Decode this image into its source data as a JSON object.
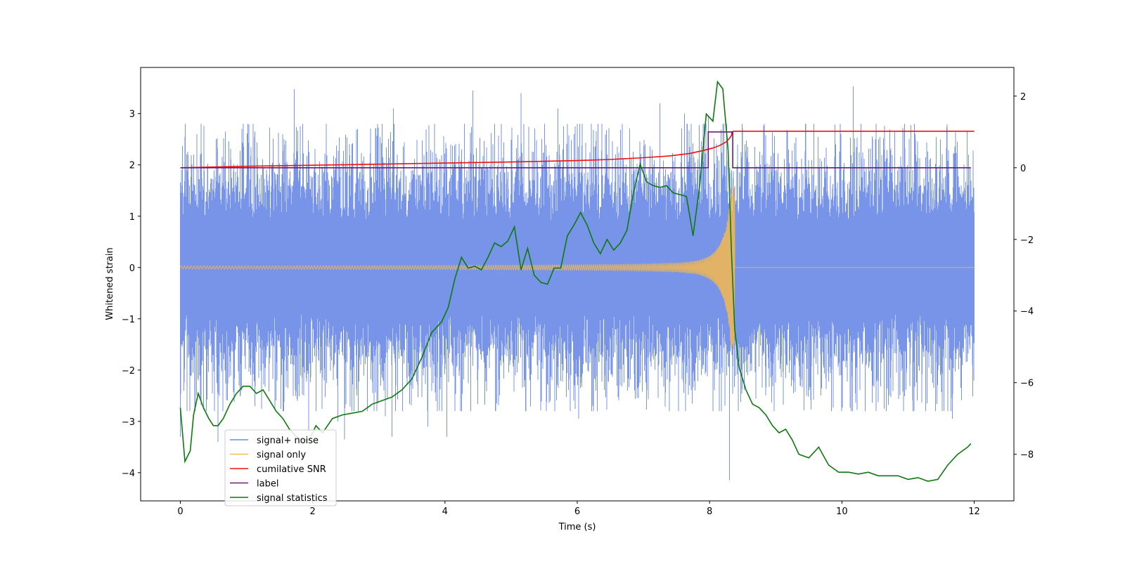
{
  "chart_data": {
    "type": "line",
    "xlabel": "Time (s)",
    "ylabel": "Whitened strain",
    "y2label": "",
    "xlim": [
      -0.6,
      12.6
    ],
    "ylim": [
      -4.55,
      3.9
    ],
    "y2lim": [
      -9.3,
      2.8
    ],
    "x_ticks": [
      0,
      2,
      4,
      6,
      8,
      10,
      12
    ],
    "y_ticks": [
      -4,
      -3,
      -2,
      -1,
      0,
      1,
      2,
      3
    ],
    "y2_ticks": [
      -8,
      -6,
      -4,
      -2,
      0,
      2
    ],
    "legend_position": "lower-left",
    "grid": false,
    "series": [
      {
        "name": "signal+ noise",
        "color": "#6b8be6",
        "axis": "left",
        "kind": "noise",
        "x_range": [
          0,
          12
        ],
        "typical_range": [
          -2.3,
          2.4
        ],
        "spikes": [
          {
            "x": 0.0,
            "y": -3.3
          },
          {
            "x": 0.25,
            "y": 2.6
          },
          {
            "x": 0.57,
            "y": -3.4
          },
          {
            "x": 0.68,
            "y": 2.65
          },
          {
            "x": 1.12,
            "y": 2.55
          },
          {
            "x": 1.72,
            "y": 3.48
          },
          {
            "x": 1.94,
            "y": -3.2
          },
          {
            "x": 2.38,
            "y": -3.0
          },
          {
            "x": 2.48,
            "y": -3.35
          },
          {
            "x": 2.68,
            "y": 2.7
          },
          {
            "x": 3.05,
            "y": 2.8
          },
          {
            "x": 3.1,
            "y": -2.9
          },
          {
            "x": 3.2,
            "y": -3.3
          },
          {
            "x": 3.22,
            "y": 3.1
          },
          {
            "x": 3.74,
            "y": -3.1
          },
          {
            "x": 3.84,
            "y": 2.8
          },
          {
            "x": 4.03,
            "y": -3.3
          },
          {
            "x": 4.42,
            "y": 3.45
          },
          {
            "x": 5.15,
            "y": 3.4
          },
          {
            "x": 5.71,
            "y": 3.1
          },
          {
            "x": 5.95,
            "y": 2.6
          },
          {
            "x": 6.02,
            "y": -2.95
          },
          {
            "x": 6.22,
            "y": -2.8
          },
          {
            "x": 7.25,
            "y": 3.2
          },
          {
            "x": 7.62,
            "y": 3.0
          },
          {
            "x": 7.98,
            "y": 2.95
          },
          {
            "x": 8.3,
            "y": -4.15
          },
          {
            "x": 9.45,
            "y": 2.8
          },
          {
            "x": 10.17,
            "y": 3.53
          },
          {
            "x": 11.67,
            "y": -2.95
          }
        ]
      },
      {
        "name": "signal only",
        "color": "#f5b94f",
        "axis": "left",
        "kind": "chirp",
        "x_range": [
          0,
          12
        ],
        "merger_time": 8.38,
        "amplitude_start": 0.03,
        "amplitude_peak": 1.6
      },
      {
        "name": "cumilative SNR",
        "color": "#ee1111",
        "axis": "right",
        "x": [
          0,
          1,
          2,
          3,
          4,
          5,
          6,
          6.5,
          7,
          7.4,
          7.7,
          7.9,
          8.05,
          8.15,
          8.25,
          8.3,
          8.33,
          8.34,
          8.36,
          8.4,
          12
        ],
        "y": [
          0.0,
          0.04,
          0.07,
          0.1,
          0.13,
          0.16,
          0.2,
          0.23,
          0.28,
          0.33,
          0.4,
          0.48,
          0.55,
          0.62,
          0.72,
          0.82,
          0.9,
          1.0,
          1.02,
          1.02,
          1.02
        ]
      },
      {
        "name": "label",
        "color": "#6a1a7a",
        "axis": "right",
        "x": [
          0,
          7.98,
          7.98,
          8.35,
          8.35,
          11.95
        ],
        "y": [
          0,
          0,
          1.0,
          1.0,
          0,
          0
        ]
      },
      {
        "name": "signal statistics",
        "color": "#0d7a0d",
        "axis": "right",
        "x": [
          0,
          0.07,
          0.15,
          0.2,
          0.27,
          0.35,
          0.43,
          0.5,
          0.57,
          0.65,
          0.75,
          0.85,
          0.95,
          1.05,
          1.15,
          1.25,
          1.35,
          1.45,
          1.55,
          1.65,
          1.75,
          1.85,
          1.95,
          2.05,
          2.15,
          2.3,
          2.45,
          2.6,
          2.75,
          2.9,
          3.05,
          3.2,
          3.35,
          3.5,
          3.65,
          3.8,
          3.95,
          4.05,
          4.15,
          4.25,
          4.35,
          4.45,
          4.55,
          4.65,
          4.75,
          4.85,
          4.95,
          5.05,
          5.15,
          5.25,
          5.35,
          5.45,
          5.55,
          5.65,
          5.75,
          5.85,
          5.95,
          6.05,
          6.15,
          6.25,
          6.35,
          6.45,
          6.55,
          6.65,
          6.75,
          6.85,
          6.95,
          7.05,
          7.15,
          7.25,
          7.35,
          7.45,
          7.55,
          7.65,
          7.75,
          7.85,
          7.95,
          8.05,
          8.12,
          8.2,
          8.28,
          8.33,
          8.38,
          8.45,
          8.55,
          8.65,
          8.75,
          8.85,
          8.95,
          9.05,
          9.15,
          9.25,
          9.35,
          9.5,
          9.65,
          9.8,
          9.95,
          10.1,
          10.25,
          10.4,
          10.55,
          10.7,
          10.85,
          11.0,
          11.15,
          11.3,
          11.45,
          11.6,
          11.75,
          11.9,
          11.95
        ],
        "y": [
          -6.7,
          -8.2,
          -7.9,
          -6.9,
          -6.3,
          -6.7,
          -7.0,
          -7.2,
          -7.2,
          -7.0,
          -6.6,
          -6.3,
          -6.1,
          -6.1,
          -6.3,
          -6.2,
          -6.5,
          -6.8,
          -7.0,
          -7.3,
          -7.5,
          -7.6,
          -7.6,
          -7.2,
          -7.4,
          -7.0,
          -6.9,
          -6.85,
          -6.8,
          -6.6,
          -6.5,
          -6.4,
          -6.2,
          -5.9,
          -5.3,
          -4.6,
          -4.3,
          -3.9,
          -3.1,
          -2.5,
          -2.8,
          -2.75,
          -2.85,
          -2.5,
          -2.1,
          -2.2,
          -2.05,
          -1.65,
          -2.85,
          -2.25,
          -3.0,
          -3.2,
          -3.25,
          -2.8,
          -2.8,
          -1.9,
          -1.6,
          -1.25,
          -1.6,
          -2.1,
          -2.4,
          -2.0,
          -2.3,
          -2.1,
          -1.75,
          -0.7,
          0.1,
          -0.4,
          -0.5,
          -0.55,
          -0.5,
          -0.7,
          -0.75,
          -0.8,
          -1.9,
          -0.5,
          1.5,
          1.3,
          2.4,
          2.2,
          0.5,
          -2.3,
          -4.5,
          -5.6,
          -6.2,
          -6.6,
          -6.7,
          -6.9,
          -7.2,
          -7.4,
          -7.3,
          -7.6,
          -8.0,
          -8.1,
          -7.8,
          -8.3,
          -8.5,
          -8.5,
          -8.55,
          -8.5,
          -8.6,
          -8.6,
          -8.6,
          -8.7,
          -8.65,
          -8.75,
          -8.7,
          -8.3,
          -8.0,
          -7.8,
          -7.7
        ]
      }
    ]
  }
}
